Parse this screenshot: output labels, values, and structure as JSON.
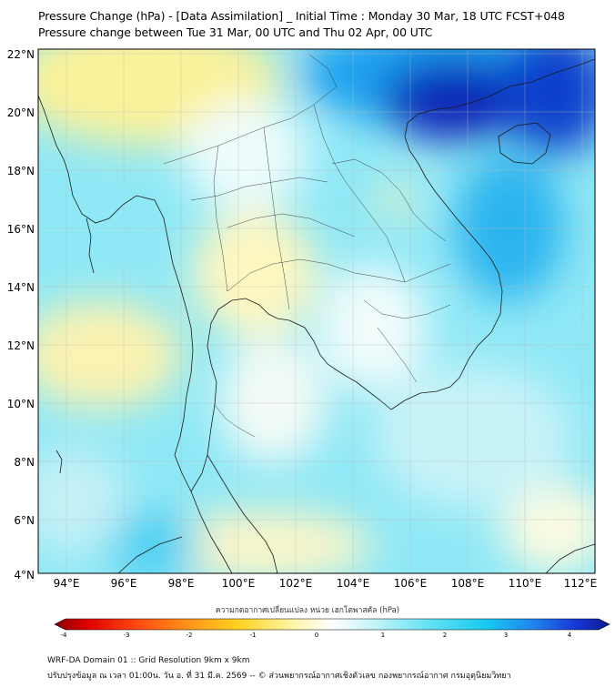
{
  "title": {
    "line1": "Pressure Change (hPa) - [Data Assimilation] _ Initial Time : Monday 30 Mar, 18 UTC FCST+048",
    "line2": "Pressure change between Tue 31 Mar, 00 UTC and Thu 02 Apr, 00 UTC"
  },
  "axes": {
    "lat_labels": [
      "22°N",
      "20°N",
      "18°N",
      "16°N",
      "14°N",
      "12°N",
      "10°N",
      "8°N",
      "6°N",
      "4°N"
    ],
    "lon_labels": [
      "94°E",
      "96°E",
      "98°E",
      "100°E",
      "102°E",
      "104°E",
      "106°E",
      "108°E",
      "110°E",
      "112°E"
    ]
  },
  "colorbar": {
    "label": "ความกดอากาศเปลี่ยนแปลง หน่วย เฮกโตพาสคัล (hPa)",
    "ticks": [
      "-4",
      "-3",
      "-2",
      "-1",
      "0",
      "1",
      "2",
      "3",
      "4"
    ],
    "min": -4,
    "max": 4
  },
  "colors": {
    "negative_strong": "#8b0000",
    "negative_mid": "#ffd21f",
    "neutral": "#ffffff",
    "positive_mid": "#37d4f0",
    "positive_strong": "#0a1a8c"
  },
  "footer": {
    "line1": "WRF-DA Domain 01 :: Grid Resolution 9km x 9km",
    "line2": "ปรับปรุงข้อมูล ณ เวลา 01:00น. วัน อ. ที่ 31 มี.ค. 2569 -- © ส่วนพยากรณ์อากาศเชิงตัวเลข กองพยากรณ์อากาศ กรมอุตุนิยมวิทยา"
  }
}
